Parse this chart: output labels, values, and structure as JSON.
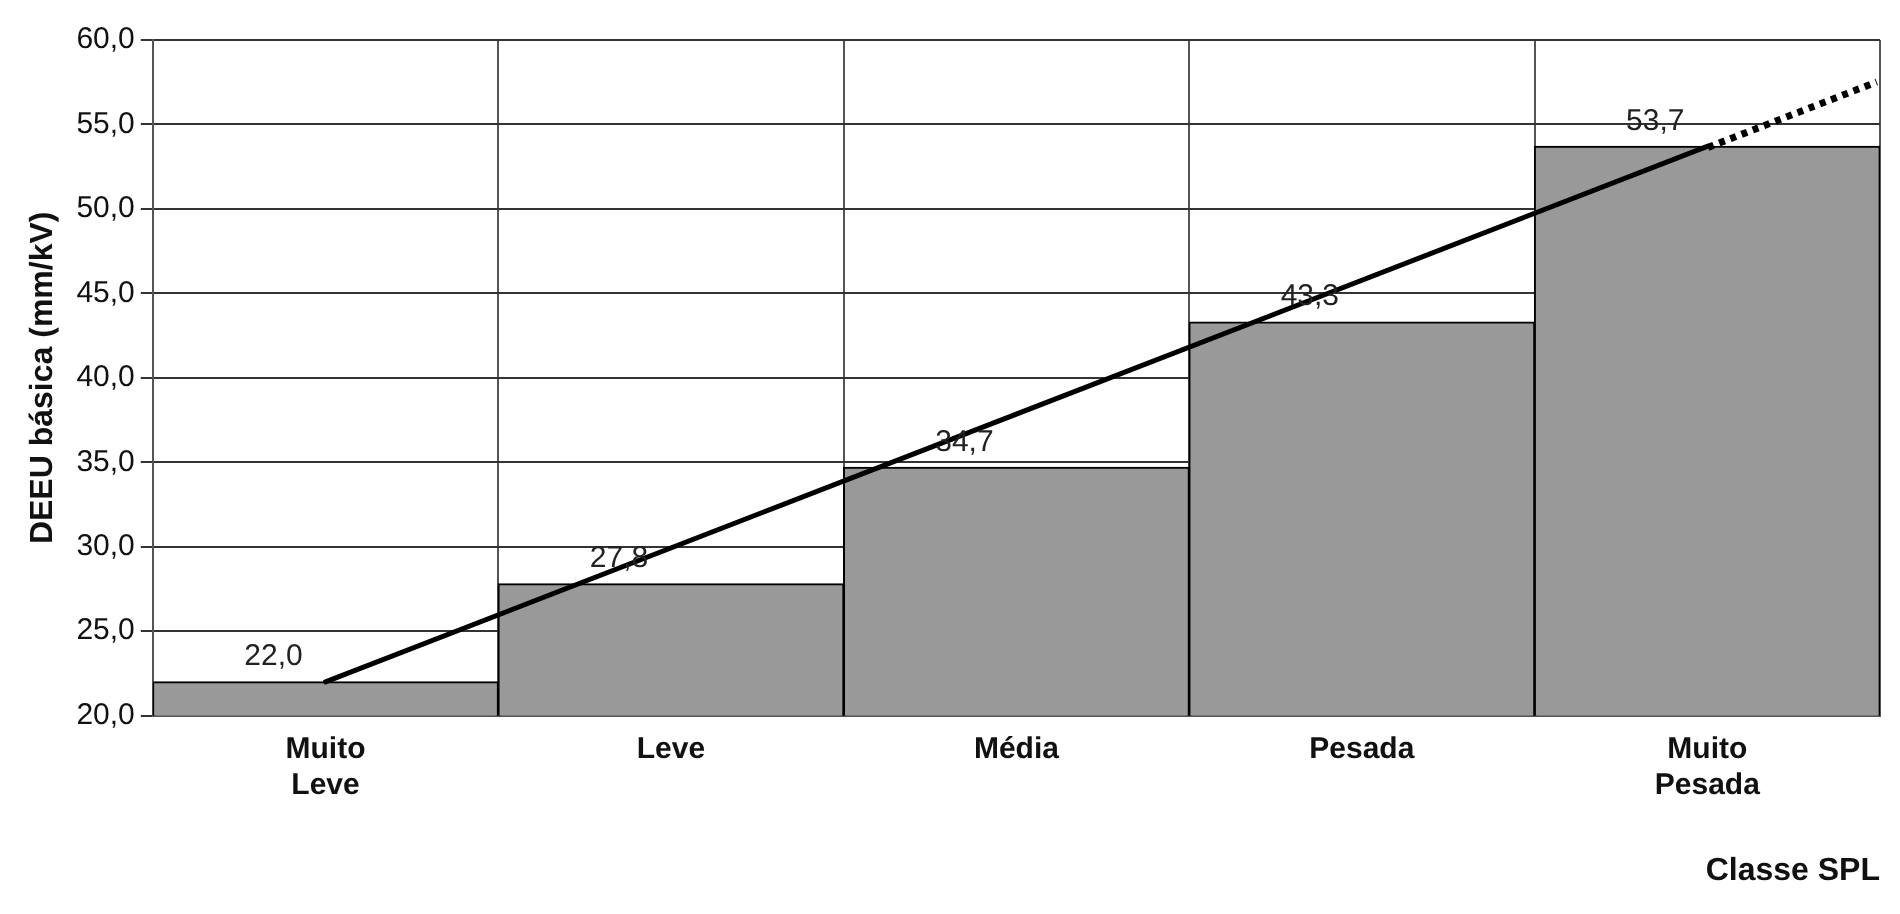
{
  "chart_data": {
    "type": "bar",
    "categories": [
      "Muito Leve",
      "Leve",
      "Média",
      "Pesada",
      "Muito Pesada"
    ],
    "values": [
      22.0,
      27.8,
      34.7,
      43.3,
      53.7
    ],
    "color": "#999999",
    "value_labels": [
      "22,0",
      "27,8",
      "34,7",
      "43,3",
      "53,7"
    ],
    "series": [
      {
        "type": "line",
        "values": [
          22.0,
          null,
          null,
          null,
          53.7
        ],
        "color": "#000000",
        "line_style": "solid"
      }
    ],
    "xlabel": "Classe SPL",
    "ylabel": "DEEU básica (mm/kV)",
    "ylim": [
      20,
      60
    ],
    "yticks": [
      {
        "value": 20,
        "label": "20,0"
      },
      {
        "value": 25,
        "label": "25,0"
      },
      {
        "value": 30,
        "label": "30,0"
      },
      {
        "value": 35,
        "label": "35,0"
      },
      {
        "value": 40,
        "label": "40,0"
      },
      {
        "value": 45,
        "label": "45,0"
      },
      {
        "value": 50,
        "label": "50,0"
      },
      {
        "value": 55,
        "label": "55,0"
      },
      {
        "value": 60,
        "label": "60,0"
      }
    ],
    "grid": true,
    "legend": false
  }
}
